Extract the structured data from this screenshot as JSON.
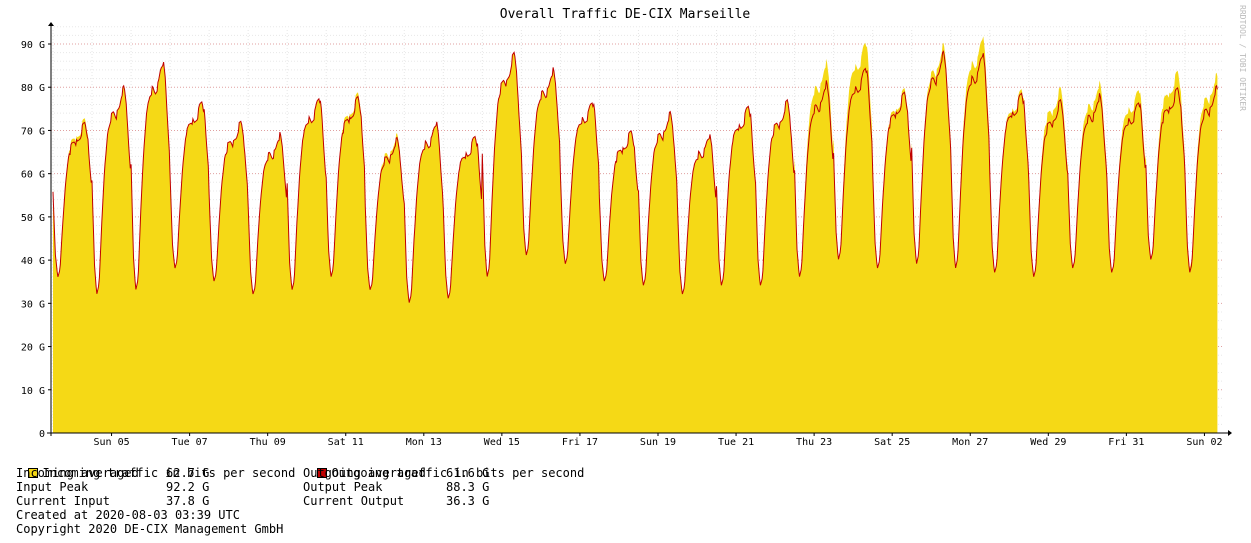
{
  "watermark": "RRDTOOL / TOBI OETIKER",
  "chart_data": {
    "type": "area",
    "title": "Overall Traffic DE-CIX Marseille",
    "ylim": [
      0,
      95
    ],
    "y_unit": "G",
    "y_ticks": [
      {
        "value": 0,
        "label": "0"
      },
      {
        "value": 10,
        "label": "10 G"
      },
      {
        "value": 20,
        "label": "20 G"
      },
      {
        "value": 30,
        "label": "30 G"
      },
      {
        "value": 40,
        "label": "40 G"
      },
      {
        "value": 50,
        "label": "50 G"
      },
      {
        "value": 60,
        "label": "60 G"
      },
      {
        "value": 70,
        "label": "70 G"
      },
      {
        "value": 80,
        "label": "80 G"
      },
      {
        "value": 90,
        "label": "90 G"
      }
    ],
    "x_ticks": [
      "Sun 05",
      "Tue 07",
      "Thu 09",
      "Sat 11",
      "Mon 13",
      "Wed 15",
      "Fri 17",
      "Sun 19",
      "Tue 21",
      "Thu 23",
      "Sat 25",
      "Mon 27",
      "Wed 29",
      "Fri 31",
      "Sun 02"
    ],
    "grid": true,
    "series": [
      {
        "name": "Incoming traffic in bits per second",
        "color": "#F5D916",
        "daily": [
          {
            "min": 36,
            "max": 73
          },
          {
            "min": 32,
            "max": 80
          },
          {
            "min": 33,
            "max": 86
          },
          {
            "min": 38,
            "max": 77
          },
          {
            "min": 35,
            "max": 72
          },
          {
            "min": 32,
            "max": 69
          },
          {
            "min": 33,
            "max": 78
          },
          {
            "min": 36,
            "max": 79
          },
          {
            "min": 33,
            "max": 69
          },
          {
            "min": 30,
            "max": 72
          },
          {
            "min": 31,
            "max": 69
          },
          {
            "min": 36,
            "max": 88
          },
          {
            "min": 41,
            "max": 84
          },
          {
            "min": 39,
            "max": 77
          },
          {
            "min": 35,
            "max": 70
          },
          {
            "min": 34,
            "max": 74
          },
          {
            "min": 32,
            "max": 69
          },
          {
            "min": 34,
            "max": 76
          },
          {
            "min": 34,
            "max": 77
          },
          {
            "min": 36,
            "max": 86
          },
          {
            "min": 40,
            "max": 91
          },
          {
            "min": 38,
            "max": 80
          },
          {
            "min": 39,
            "max": 90
          },
          {
            "min": 38,
            "max": 92
          },
          {
            "min": 37,
            "max": 80
          },
          {
            "min": 36,
            "max": 80
          },
          {
            "min": 38,
            "max": 81
          },
          {
            "min": 37,
            "max": 80
          },
          {
            "min": 40,
            "max": 84
          },
          {
            "min": 38,
            "max": 83
          }
        ]
      },
      {
        "name": "Outgoing traffic in bits per second",
        "color": "#C00000",
        "daily": [
          {
            "min": 36,
            "max": 72
          },
          {
            "min": 32,
            "max": 80
          },
          {
            "min": 33,
            "max": 86
          },
          {
            "min": 38,
            "max": 77
          },
          {
            "min": 35,
            "max": 72
          },
          {
            "min": 32,
            "max": 69
          },
          {
            "min": 33,
            "max": 78
          },
          {
            "min": 36,
            "max": 78
          },
          {
            "min": 33,
            "max": 68
          },
          {
            "min": 30,
            "max": 72
          },
          {
            "min": 31,
            "max": 69
          },
          {
            "min": 36,
            "max": 88
          },
          {
            "min": 41,
            "max": 84
          },
          {
            "min": 39,
            "max": 77
          },
          {
            "min": 35,
            "max": 70
          },
          {
            "min": 34,
            "max": 74
          },
          {
            "min": 32,
            "max": 69
          },
          {
            "min": 34,
            "max": 76
          },
          {
            "min": 34,
            "max": 77
          },
          {
            "min": 36,
            "max": 81
          },
          {
            "min": 40,
            "max": 85
          },
          {
            "min": 38,
            "max": 79
          },
          {
            "min": 39,
            "max": 88
          },
          {
            "min": 38,
            "max": 88
          },
          {
            "min": 37,
            "max": 79
          },
          {
            "min": 36,
            "max": 77
          },
          {
            "min": 38,
            "max": 78
          },
          {
            "min": 37,
            "max": 77
          },
          {
            "min": 40,
            "max": 80
          },
          {
            "min": 37,
            "max": 80
          }
        ]
      }
    ]
  },
  "legend": {
    "incoming_label": "Incoming traffic in bits per second",
    "outgoing_label": "Outgoing traffic in bits per second",
    "incoming_color": "#F5D916",
    "outgoing_color": "#C00000"
  },
  "stats": {
    "incoming_avg_label": "Incoming averaged",
    "incoming_avg_value": "62.7 G",
    "input_peak_label": "Input Peak",
    "input_peak_value": "92.2 G",
    "current_input_label": "Current Input",
    "current_input_value": "37.8 G",
    "outgoing_avg_label": "Outgoing averaged",
    "outgoing_avg_value": "61.6 G",
    "output_peak_label": "Output Peak",
    "output_peak_value": "88.3 G",
    "current_output_label": "Current Output",
    "current_output_value": "36.3 G"
  },
  "footer": {
    "created": "Created at 2020-08-03 03:39 UTC",
    "copyright": "Copyright 2020 DE-CIX Management GmbH"
  }
}
